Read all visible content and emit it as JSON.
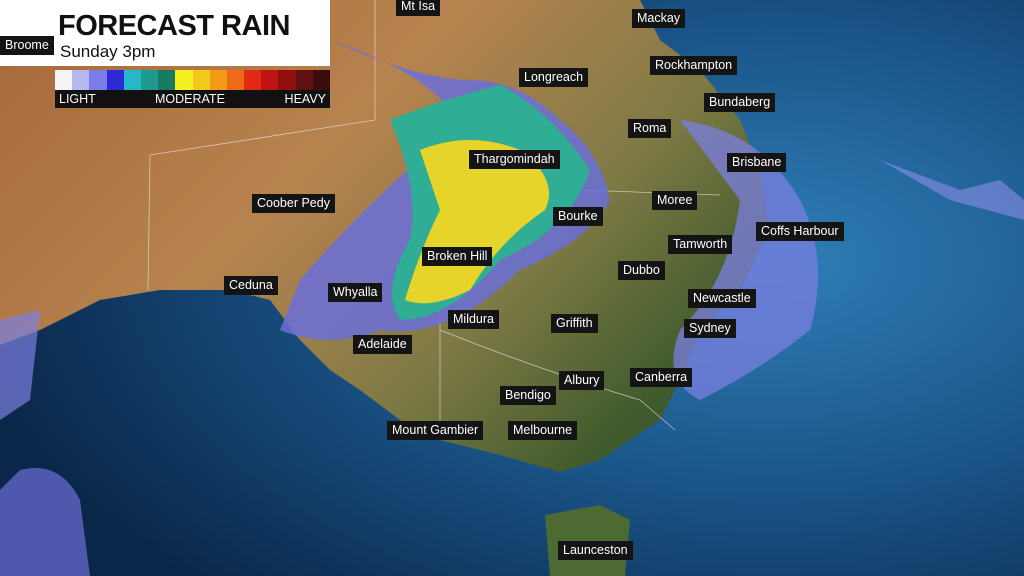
{
  "header": {
    "title": "FORECAST RAIN",
    "subtitle": "Sunday 3pm"
  },
  "legend": {
    "labels": [
      "LIGHT",
      "MODERATE",
      "HEAVY"
    ]
  },
  "places": [
    "Mt Isa",
    "Mackay",
    "Broome",
    "Longreach",
    "Rockhampton",
    "Bundaberg",
    "Roma",
    "Thargomindah",
    "Brisbane",
    "Coober Pedy",
    "Moree",
    "Bourke",
    "Coffs Harbour",
    "Tamworth",
    "Broken Hill",
    "Dubbo",
    "Ceduna",
    "Whyalla",
    "Newcastle",
    "Mildura",
    "Griffith",
    "Sydney",
    "Adelaide",
    "Albury",
    "Canberra",
    "Bendigo",
    "Mount Gambier",
    "Melbourne",
    "Launceston"
  ]
}
